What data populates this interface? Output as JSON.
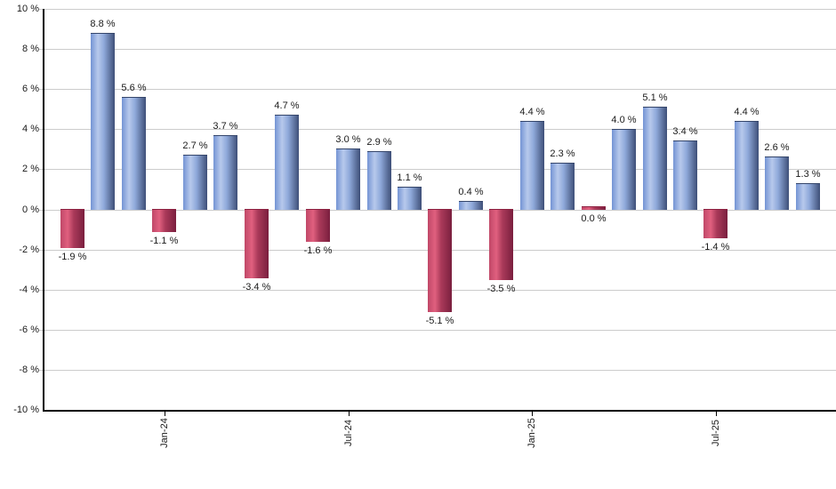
{
  "chart_data": {
    "type": "bar",
    "title": "",
    "xlabel": "",
    "ylabel": "",
    "legend_position": "none",
    "grid": "horizontal",
    "y_axis": {
      "min": -10,
      "max": 10,
      "step": 2,
      "tick_labels": [
        "10 %",
        "8 %",
        "6 %",
        "4 %",
        "2 %",
        "0 %",
        "-2 %",
        "-4 %",
        "-6 %",
        "-8 %",
        "-10 %"
      ]
    },
    "x_axis_tick_labels": [
      {
        "label": "Jan-24",
        "bar_index": 3
      },
      {
        "label": "Jul-24",
        "bar_index": 9
      },
      {
        "label": "Jan-25",
        "bar_index": 15
      },
      {
        "label": "Jul-25",
        "bar_index": 21
      }
    ],
    "bars": [
      {
        "value": -1.9,
        "label": "-1.9 %"
      },
      {
        "value": 8.8,
        "label": "8.8 %"
      },
      {
        "value": 5.6,
        "label": "5.6 %"
      },
      {
        "value": -1.1,
        "label": "-1.1 %"
      },
      {
        "value": 2.7,
        "label": "2.7 %"
      },
      {
        "value": 3.7,
        "label": "3.7 %"
      },
      {
        "value": -3.4,
        "label": "-3.4 %"
      },
      {
        "value": 4.7,
        "label": "4.7 %"
      },
      {
        "value": -1.6,
        "label": "-1.6 %"
      },
      {
        "value": 3.0,
        "label": "3.0 %"
      },
      {
        "value": 2.9,
        "label": "2.9 %"
      },
      {
        "value": 1.1,
        "label": "1.1 %"
      },
      {
        "value": -5.1,
        "label": "-5.1 %"
      },
      {
        "value": 0.4,
        "label": "0.4 %"
      },
      {
        "value": -3.5,
        "label": "-3.5 %"
      },
      {
        "value": 4.4,
        "label": "4.4 %"
      },
      {
        "value": 2.3,
        "label": "2.3 %"
      },
      {
        "value": 0.0,
        "label": "0.0 %"
      },
      {
        "value": 4.0,
        "label": "4.0 %"
      },
      {
        "value": 5.1,
        "label": "5.1 %"
      },
      {
        "value": 3.4,
        "label": "3.4 %"
      },
      {
        "value": -1.4,
        "label": "-1.4 %"
      },
      {
        "value": 4.4,
        "label": "4.4 %"
      },
      {
        "value": 2.6,
        "label": "2.6 %"
      },
      {
        "value": 1.3,
        "label": "1.3 %"
      }
    ]
  },
  "colors": {
    "positive_bar_gradient": [
      "#7494d4",
      "#b7c9ec",
      "#8fa9da",
      "#3e4f78"
    ],
    "negative_bar_gradient": [
      "#c04868",
      "#e0607f",
      "#aa3a5a",
      "#7a1f3e"
    ],
    "gridline": "#cccccc",
    "axis": "#000000",
    "text": "#1a1a1a"
  }
}
